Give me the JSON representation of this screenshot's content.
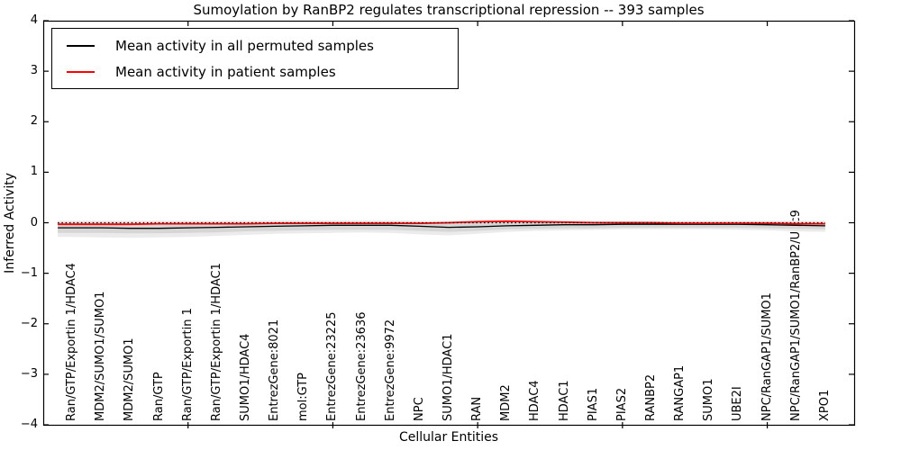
{
  "window": {
    "title": "Sumoylation by RanBP2 regulates transcriptional repression -- 393 samples"
  },
  "chart_data": {
    "type": "line",
    "title": "Sumoylation by RanBP2 regulates transcriptional repression -- 393 samples",
    "xlabel": "Cellular Entities",
    "ylabel": "Inferred Activity",
    "ylim": [
      -4,
      4
    ],
    "grid": false,
    "legend_position": "upper left",
    "ytick_values": [
      4,
      3,
      2,
      1,
      0,
      -1,
      -2,
      -3,
      -4
    ],
    "ytick_labels": [
      "4",
      "3",
      "2",
      "1",
      "0",
      "−1",
      "−2",
      "−3",
      "−4"
    ],
    "xtick_positions": [
      4,
      9,
      14,
      19,
      24
    ],
    "categories": [
      "Ran/GTP/Exportin 1/HDAC4",
      "MDM2/SUMO1/SUMO1",
      "MDM2/SUMO1",
      "Ran/GTP",
      "Ran/GTP/Exportin 1",
      "Ran/GTP/Exportin 1/HDAC1",
      "SUMO1/HDAC4",
      "EntrezGene:8021",
      "mol:GTP",
      "EntrezGene:23225",
      "EntrezGene:23636",
      "EntrezGene:9972",
      "NPC",
      "SUMO1/HDAC1",
      "RAN",
      "MDM2",
      "HDAC4",
      "HDAC1",
      "PIAS1",
      "PIAS2",
      "RANBP2",
      "RANGAP1",
      "SUMO1",
      "UBE2I",
      "NPC/RanGAP1/SUMO1",
      "NPC/RanGAP1/SUMO1/RanBP2/Ubc9",
      "XPO1"
    ],
    "series": [
      {
        "name": "Mean activity in all permuted samples",
        "color": "#000000",
        "values": [
          -0.1,
          -0.1,
          -0.11,
          -0.11,
          -0.1,
          -0.09,
          -0.08,
          -0.07,
          -0.06,
          -0.05,
          -0.05,
          -0.05,
          -0.07,
          -0.09,
          -0.08,
          -0.06,
          -0.05,
          -0.04,
          -0.04,
          -0.03,
          -0.03,
          -0.03,
          -0.03,
          -0.03,
          -0.04,
          -0.05,
          -0.06
        ]
      },
      {
        "name": "Mean activity in patient samples",
        "color": "#ff0000",
        "values": [
          -0.03,
          -0.03,
          -0.03,
          -0.02,
          -0.02,
          -0.02,
          -0.02,
          -0.01,
          -0.01,
          -0.01,
          -0.01,
          -0.01,
          -0.01,
          0.0,
          0.02,
          0.03,
          0.02,
          0.01,
          0.0,
          0.0,
          0.0,
          -0.01,
          -0.01,
          -0.01,
          -0.01,
          -0.02,
          -0.02
        ]
      }
    ],
    "reference_line": {
      "value": 0,
      "style": "dotted",
      "color": "#000000"
    },
    "bands": [
      {
        "name": "permuted-range-outer",
        "color": "#ebebeb",
        "upper": [
          0.04,
          0.04,
          0.04,
          0.04,
          0.04,
          0.04,
          0.04,
          0.05,
          0.05,
          0.05,
          0.05,
          0.05,
          0.04,
          0.04,
          0.05,
          0.05,
          0.05,
          0.05,
          0.04,
          0.04,
          0.04,
          0.04,
          0.04,
          0.04,
          0.04,
          0.04,
          0.04
        ],
        "lower": [
          -0.28,
          -0.29,
          -0.3,
          -0.29,
          -0.28,
          -0.26,
          -0.24,
          -0.22,
          -0.21,
          -0.2,
          -0.19,
          -0.2,
          -0.23,
          -0.25,
          -0.22,
          -0.18,
          -0.16,
          -0.15,
          -0.14,
          -0.13,
          -0.13,
          -0.13,
          -0.13,
          -0.14,
          -0.15,
          -0.17,
          -0.18
        ]
      },
      {
        "name": "permuted-range-inner",
        "color": "#d6d6d6",
        "upper": [
          0.01,
          0.01,
          0.0,
          0.0,
          0.01,
          0.01,
          0.01,
          0.01,
          0.02,
          0.02,
          0.02,
          0.02,
          0.01,
          0.0,
          0.01,
          0.02,
          0.02,
          0.02,
          0.02,
          0.02,
          0.02,
          0.02,
          0.02,
          0.02,
          0.02,
          0.01,
          0.01
        ],
        "lower": [
          -0.2,
          -0.2,
          -0.21,
          -0.21,
          -0.2,
          -0.19,
          -0.17,
          -0.16,
          -0.15,
          -0.14,
          -0.14,
          -0.14,
          -0.16,
          -0.18,
          -0.16,
          -0.13,
          -0.12,
          -0.11,
          -0.11,
          -0.1,
          -0.1,
          -0.1,
          -0.1,
          -0.1,
          -0.11,
          -0.12,
          -0.13
        ]
      }
    ]
  }
}
